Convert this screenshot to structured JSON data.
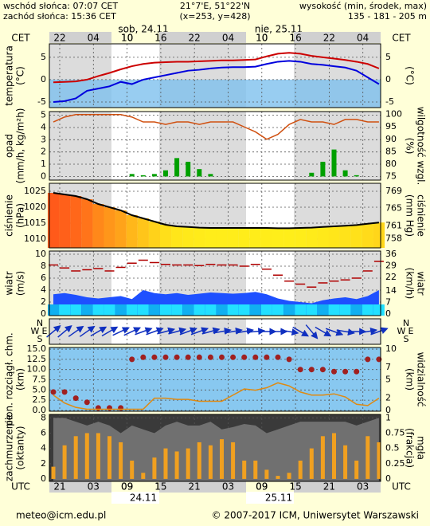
{
  "header": {
    "sunrise": "wschód słońca: 07:07 CET",
    "sunset": "zachód słońca: 15:36 CET",
    "coords": "21°7'E, 51°22'N",
    "grid": "(x=253, y=428)",
    "height_title": "wysokość (min, środek, max)",
    "height_values": "135 - 181 - 205 m"
  },
  "time": {
    "top_zone": "CET",
    "top_hours": [
      "22",
      "04",
      "10",
      "16",
      "22",
      "04",
      "10",
      "16",
      "22",
      "04"
    ],
    "top_dates": [
      "sob, 24.11",
      "nie, 25.11"
    ],
    "bottom_zone": "UTC",
    "bottom_hours": [
      "21",
      "03",
      "09",
      "15",
      "21",
      "03",
      "09",
      "15",
      "21",
      "03"
    ],
    "bottom_dates": [
      "24.11",
      "25.11"
    ]
  },
  "footer": {
    "email": "meteo@icm.edu.pl",
    "copyright": "© 2007-2017 ICM, Uniwersytet Warszawski"
  },
  "chart_data": [
    {
      "type": "line",
      "ylabel": [
        "temperatura",
        "(°C)"
      ],
      "y2label": [
        "(°C)"
      ],
      "ylim": [
        -6.25,
        8
      ],
      "yticks": [
        5,
        0,
        -5
      ],
      "y2lim": [
        -6.25,
        8
      ],
      "y2ticks": [
        5,
        0,
        -5
      ],
      "series": [
        {
          "color": "#cc0000",
          "values": [
            -0.6,
            -0.5,
            -0.4,
            0,
            0.8,
            1.5,
            2.3,
            3,
            3.5,
            3.8,
            3.9,
            4,
            4,
            4.1,
            4.2,
            4.3,
            4.3,
            4.4,
            4.5,
            5.2,
            5.8,
            6,
            5.8,
            5.3,
            5,
            4.7,
            4.4,
            4,
            3.5,
            2.5
          ]
        },
        {
          "color": "#0000dd",
          "values": [
            -5,
            -4.8,
            -4.2,
            -2.5,
            -2,
            -1.5,
            -0.5,
            -1,
            0,
            0.5,
            1,
            1.5,
            2,
            2.2,
            2.5,
            2.7,
            2.8,
            2.8,
            2.9,
            3.5,
            4,
            4.2,
            4,
            3.5,
            3.3,
            3,
            2.7,
            2,
            0.5,
            -1
          ]
        }
      ]
    },
    {
      "type": "bar",
      "ylabel": [
        "opad",
        "(mm/h, kg/m²h)"
      ],
      "y2label": [
        "(%)",
        "wilgotność wzgl."
      ],
      "ylim": [
        -0.3,
        5.3
      ],
      "yticks": [
        5,
        4,
        3,
        2,
        1,
        0
      ],
      "y2lim": [
        73.5,
        101.2
      ],
      "y2ticks": [
        100,
        95,
        90,
        85,
        80,
        75
      ],
      "series": [
        {
          "color": "#00a000",
          "values": [
            0,
            0,
            0,
            0,
            0,
            0,
            0,
            0.2,
            0.1,
            0.2,
            0.5,
            1.5,
            1.2,
            0.6,
            0.2,
            0,
            0,
            0,
            0,
            0,
            0,
            0,
            0,
            0.3,
            1.2,
            2.2,
            0.5,
            0.1,
            0,
            0
          ]
        },
        {
          "color": "#d05010",
          "axis": "y2",
          "values": [
            97,
            99,
            100,
            100,
            100,
            100,
            100,
            99,
            97,
            97,
            96,
            97,
            97,
            96,
            97,
            97,
            97,
            95,
            93,
            90,
            92,
            96,
            98,
            97,
            97,
            96,
            98,
            98,
            97,
            97
          ]
        }
      ]
    },
    {
      "type": "area",
      "ylabel": [
        "ciśnienie",
        "(hPa)"
      ],
      "y2label": [
        "(mm Hg)",
        "ciśnienie"
      ],
      "ylim": [
        1007.25,
        1027.5
      ],
      "yticks": [
        1025,
        1020,
        1015,
        1010
      ],
      "y2lim": [
        755.9,
        770.8
      ],
      "y2ticks": [
        769,
        765,
        761,
        758
      ],
      "series": [
        {
          "color": "#000000",
          "values": [
            1024.5,
            1024,
            1023.5,
            1022.5,
            1021,
            1020,
            1019,
            1017.5,
            1016.5,
            1015.5,
            1014.5,
            1014,
            1013.8,
            1013.6,
            1013.5,
            1013.5,
            1013.5,
            1013.5,
            1013.5,
            1013.5,
            1013.4,
            1013.4,
            1013.5,
            1013.6,
            1013.8,
            1014,
            1014.2,
            1014.4,
            1014.8,
            1015.2
          ]
        }
      ]
    },
    {
      "type": "wind",
      "ylabel": [
        "wiatr",
        "(m/s)"
      ],
      "y2label": [
        "(km/h)",
        "wiatr"
      ],
      "ylim": [
        -0.27,
        10.53
      ],
      "yticks": [
        10,
        8,
        6,
        4,
        2,
        0
      ],
      "y2lim": [
        -0.96,
        37.9
      ],
      "y2ticks": [
        36,
        29,
        22,
        14,
        7,
        0
      ],
      "series": [
        {
          "color": "#1e50ff",
          "values": [
            3.3,
            3.5,
            3.2,
            2.8,
            2.6,
            2.8,
            3,
            2.5,
            4,
            3.5,
            3.3,
            3.5,
            3.2,
            3.4,
            3.6,
            3.5,
            3.4,
            3.5,
            3.7,
            3.3,
            2.6,
            2.2,
            2,
            1.8,
            2.3,
            2.6,
            2.8,
            2.5,
            3,
            4
          ]
        },
        {
          "color": "#b00000",
          "values": [
            8.2,
            7.7,
            7.2,
            7.4,
            7.6,
            7.2,
            7.8,
            8.5,
            9,
            8.6,
            8.3,
            8.2,
            8.2,
            8.1,
            8.3,
            8.2,
            8.2,
            8,
            8.3,
            7.5,
            6.5,
            5.5,
            5,
            4.5,
            5.2,
            5.5,
            5.7,
            6,
            7.2,
            8.8
          ]
        }
      ]
    },
    {
      "type": "arrows",
      "compass": [
        "N",
        "W",
        "E",
        "S"
      ],
      "series": [
        {
          "color": "#1030c0",
          "values": [
            230,
            230,
            235,
            235,
            240,
            240,
            245,
            245,
            250,
            250,
            255,
            255,
            250,
            250,
            255,
            260,
            260,
            260,
            265,
            270,
            270,
            280,
            300,
            320,
            300,
            290,
            280,
            270,
            260,
            250
          ]
        }
      ]
    },
    {
      "type": "dots",
      "ylabel": [
        "pion. rozciągł. chm.",
        "(km)"
      ],
      "y2label": [
        "(km)",
        "widzialność"
      ],
      "ylim": [
        -0.2,
        15.4
      ],
      "yticks": [
        {
          "value": 15,
          "label": "15.0"
        },
        12.5,
        {
          "value": 10,
          "label": "10.0"
        },
        7.5,
        {
          "value": 5,
          "label": "5.0"
        },
        2.5,
        {
          "value": 0,
          "label": "0.0"
        }
      ],
      "y2lim": [
        -0.13,
        10.26
      ],
      "y2ticks": [
        10,
        7,
        5,
        2,
        0
      ],
      "series": [
        {
          "color": "#a02020",
          "values": [
            4.5,
            4.5,
            3,
            2,
            0.6,
            0.6,
            0.6,
            12.5,
            13,
            13,
            13,
            13,
            13,
            13,
            13,
            13,
            13,
            13,
            13,
            13,
            13,
            12.5,
            10,
            10,
            10,
            9.5,
            9.5,
            9.5,
            12.5,
            12.5
          ]
        },
        {
          "color": "#e08a10",
          "axis": "y2",
          "values": [
            2.5,
            1.2,
            0.5,
            0.2,
            0.2,
            0.2,
            0.2,
            0.2,
            0.2,
            2,
            2,
            1.8,
            1.8,
            1.5,
            1.5,
            1.5,
            2.5,
            3.5,
            3.3,
            3.7,
            4.5,
            4,
            3,
            2.5,
            2.5,
            2.7,
            2.2,
            1,
            0.8,
            2
          ]
        }
      ]
    },
    {
      "type": "cloud",
      "ylabel": [
        "zachmurzenie",
        "(oktanty)"
      ],
      "y2label": [
        "(frakcja)",
        "mgła"
      ],
      "ylim": [
        -0.3,
        8.45
      ],
      "yticks": [
        8,
        6,
        4,
        2,
        0
      ],
      "y2lim": [
        -0.04,
        1.056
      ],
      "y2ticks": [
        1,
        0.75,
        0.5,
        0.25,
        0
      ],
      "series": [
        {
          "color": "#707070",
          "values": [
            8,
            8,
            7.5,
            7,
            7.5,
            7,
            6,
            7,
            6.5,
            6,
            7,
            7.5,
            7,
            7,
            7.5,
            6.5,
            6.8,
            7.2,
            7,
            6,
            6.5,
            7,
            7.5,
            7.5,
            7.5,
            7.5,
            7.5,
            7,
            7.5,
            8
          ]
        },
        {
          "color": "#f0a020",
          "axis": "y2",
          "values": [
            0.2,
            0.55,
            0.7,
            0.75,
            0.75,
            0.7,
            0.6,
            0.3,
            0.1,
            0.35,
            0.5,
            0.45,
            0.5,
            0.6,
            0.55,
            0.65,
            0.6,
            0.3,
            0.3,
            0.15,
            0.05,
            0.1,
            0.3,
            0.5,
            0.7,
            0.75,
            0.55,
            0.3,
            0.7,
            0.6
          ]
        }
      ]
    }
  ]
}
